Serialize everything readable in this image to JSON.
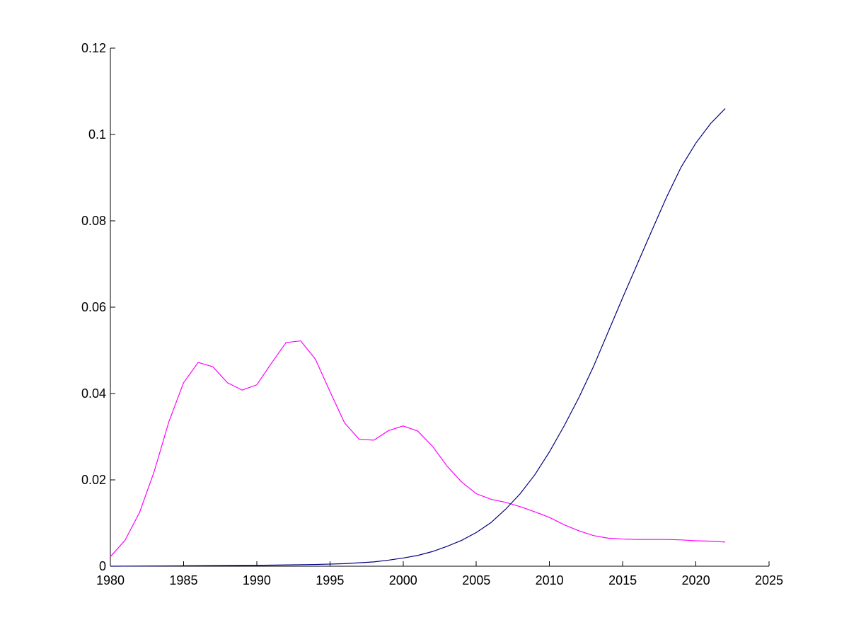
{
  "chart_data": {
    "type": "line",
    "title": "",
    "xlabel": "",
    "ylabel": "",
    "xlim": [
      1980,
      2025
    ],
    "ylim": [
      0,
      0.12
    ],
    "grid": false,
    "x_ticks": [
      {
        "value": 1980,
        "label": "1980"
      },
      {
        "value": 1985,
        "label": "1985"
      },
      {
        "value": 1990,
        "label": "1990"
      },
      {
        "value": 1995,
        "label": "1995"
      },
      {
        "value": 2000,
        "label": "2000"
      },
      {
        "value": 2005,
        "label": "2005"
      },
      {
        "value": 2010,
        "label": "2010"
      },
      {
        "value": 2015,
        "label": "2015"
      },
      {
        "value": 2020,
        "label": "2020"
      },
      {
        "value": 2025,
        "label": "2025"
      }
    ],
    "y_ticks": [
      {
        "value": 0,
        "label": "0"
      },
      {
        "value": 0.02,
        "label": "0.02"
      },
      {
        "value": 0.04,
        "label": "0.04"
      },
      {
        "value": 0.06,
        "label": "0.06"
      },
      {
        "value": 0.08,
        "label": "0.08"
      },
      {
        "value": 0.1,
        "label": "0.1"
      },
      {
        "value": 0.12,
        "label": "0.12"
      }
    ],
    "series": [
      {
        "color": "#ff00ff",
        "points": [
          [
            1980,
            0.0022
          ],
          [
            1981,
            0.006
          ],
          [
            1982,
            0.0125
          ],
          [
            1983,
            0.022
          ],
          [
            1984,
            0.0335
          ],
          [
            1985,
            0.0425
          ],
          [
            1986,
            0.0472
          ],
          [
            1987,
            0.0462
          ],
          [
            1988,
            0.0425
          ],
          [
            1989,
            0.0408
          ],
          [
            1990,
            0.042
          ],
          [
            1991,
            0.047
          ],
          [
            1992,
            0.0518
          ],
          [
            1993,
            0.0522
          ],
          [
            1994,
            0.048
          ],
          [
            1995,
            0.0405
          ],
          [
            1996,
            0.0332
          ],
          [
            1997,
            0.0294
          ],
          [
            1998,
            0.0292
          ],
          [
            1999,
            0.0314
          ],
          [
            2000,
            0.0325
          ],
          [
            2001,
            0.0313
          ],
          [
            2002,
            0.0278
          ],
          [
            2003,
            0.0232
          ],
          [
            2004,
            0.0195
          ],
          [
            2005,
            0.0168
          ],
          [
            2006,
            0.0155
          ],
          [
            2007,
            0.0148
          ],
          [
            2008,
            0.0138
          ],
          [
            2009,
            0.0126
          ],
          [
            2010,
            0.0113
          ],
          [
            2011,
            0.0096
          ],
          [
            2012,
            0.0082
          ],
          [
            2013,
            0.0071
          ],
          [
            2014,
            0.0065
          ],
          [
            2015,
            0.0063
          ],
          [
            2016,
            0.0062
          ],
          [
            2017,
            0.0062
          ],
          [
            2018,
            0.0062
          ],
          [
            2019,
            0.0061
          ],
          [
            2020,
            0.0059
          ],
          [
            2021,
            0.0058
          ],
          [
            2022,
            0.0056
          ]
        ]
      },
      {
        "color": "#000080",
        "points": [
          [
            1980,
            0.0
          ],
          [
            1985,
            0.0001
          ],
          [
            1990,
            0.0002
          ],
          [
            1994,
            0.0004
          ],
          [
            1996,
            0.0006
          ],
          [
            1997,
            0.0008
          ],
          [
            1998,
            0.001
          ],
          [
            1999,
            0.0014
          ],
          [
            2000,
            0.0019
          ],
          [
            2001,
            0.0025
          ],
          [
            2002,
            0.0034
          ],
          [
            2003,
            0.0046
          ],
          [
            2004,
            0.006
          ],
          [
            2005,
            0.0078
          ],
          [
            2006,
            0.0101
          ],
          [
            2007,
            0.0132
          ],
          [
            2008,
            0.0168
          ],
          [
            2009,
            0.0212
          ],
          [
            2010,
            0.0265
          ],
          [
            2011,
            0.0325
          ],
          [
            2012,
            0.039
          ],
          [
            2013,
            0.0462
          ],
          [
            2014,
            0.0542
          ],
          [
            2015,
            0.0622
          ],
          [
            2016,
            0.07
          ],
          [
            2017,
            0.0778
          ],
          [
            2018,
            0.0855
          ],
          [
            2019,
            0.0925
          ],
          [
            2020,
            0.098
          ],
          [
            2021,
            0.1025
          ],
          [
            2022,
            0.106
          ]
        ]
      }
    ]
  }
}
